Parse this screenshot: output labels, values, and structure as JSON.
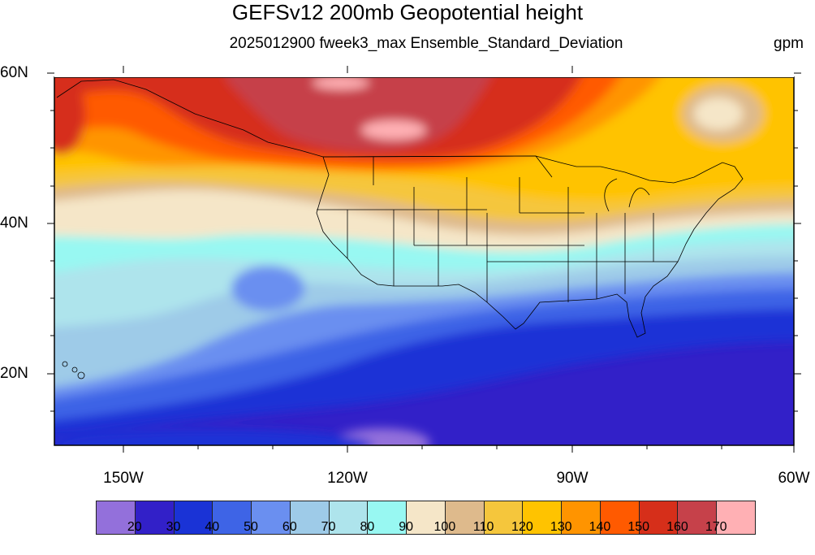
{
  "title": "GEFSv12 200mb Geopotential height",
  "subtitle": "2025012900 fweek3_max Ensemble_Standard_Deviation",
  "units": "gpm",
  "lat_labels": [
    "60N",
    "40N",
    "20N"
  ],
  "lon_labels": [
    "150W",
    "120W",
    "90W",
    "60W"
  ],
  "colorbar": {
    "colors": [
      "#9370db",
      "#3220c8",
      "#1a33d6",
      "#3e64e6",
      "#6a8ff0",
      "#9ecbe8",
      "#aee4ec",
      "#98f8f2",
      "#f5e6c8",
      "#deba8c",
      "#f5c63c",
      "#ffc300",
      "#ff9400",
      "#ff5a00",
      "#d62f1a",
      "#c6414a",
      "#ffb0b4"
    ],
    "labels": [
      "20",
      "30",
      "40",
      "50",
      "60",
      "70",
      "80",
      "90",
      "100",
      "110",
      "120",
      "130",
      "140",
      "150",
      "160",
      "170"
    ]
  },
  "chart_data": {
    "type": "heatmap",
    "title": "GEFSv12 200mb Geopotential height",
    "subtitle": "2025012900 fweek3_max Ensemble_Standard_Deviation",
    "units": "gpm",
    "lat_range": [
      10,
      60
    ],
    "lon_range": [
      -160,
      -60
    ],
    "levels": [
      20,
      30,
      40,
      50,
      60,
      70,
      80,
      90,
      100,
      110,
      120,
      130,
      140,
      150,
      160,
      170
    ]
  }
}
